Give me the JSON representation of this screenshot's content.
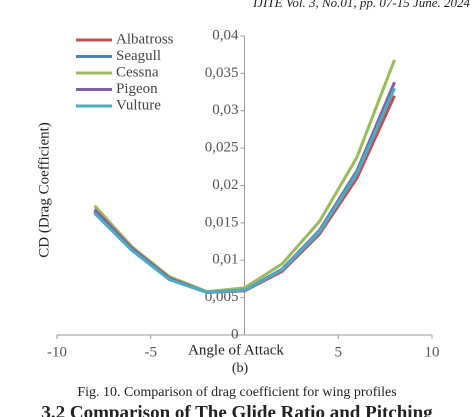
{
  "header": "IJITE Vol. 3, No.01, pp. 07-15  June. 2024",
  "chart_data": {
    "type": "line",
    "x_label": "Angle of Attack",
    "y_label": "CD (Drag Coefficient)",
    "x": [
      -8,
      -6,
      -4,
      -2,
      0,
      2,
      4,
      6,
      8
    ],
    "series": [
      {
        "name": "Albatross",
        "color": "#c0504d",
        "values": [
          0.0165,
          0.0115,
          0.0075,
          0.0057,
          0.0059,
          0.0085,
          0.0135,
          0.021,
          0.032
        ]
      },
      {
        "name": "Seagull",
        "color": "#4f81bd",
        "values": [
          0.0165,
          0.0114,
          0.0075,
          0.0057,
          0.006,
          0.0088,
          0.014,
          0.022,
          0.0338
        ]
      },
      {
        "name": "Cessna",
        "color": "#9bbb59",
        "values": [
          0.0173,
          0.0118,
          0.0078,
          0.0058,
          0.0063,
          0.0095,
          0.0152,
          0.0238,
          0.0368
        ]
      },
      {
        "name": "Pigeon",
        "color": "#8064a2",
        "values": [
          0.0168,
          0.0116,
          0.0076,
          0.0057,
          0.006,
          0.0087,
          0.0139,
          0.0218,
          0.0338
        ]
      },
      {
        "name": "Vulture",
        "color": "#4bacc6",
        "values": [
          0.0163,
          0.0113,
          0.0074,
          0.0057,
          0.006,
          0.0087,
          0.0138,
          0.0216,
          0.033
        ]
      }
    ],
    "xlim": [
      -10,
      10
    ],
    "xticks": [
      -10,
      -5,
      5,
      10
    ],
    "ylim": [
      0,
      0.04
    ],
    "yticks": [
      0,
      {
        "value": 0.005,
        "label": "0,005"
      },
      {
        "value": 0.01,
        "label": "0,01"
      },
      {
        "value": 0.015,
        "label": "0,015"
      },
      {
        "value": 0.02,
        "label": "0,02"
      },
      {
        "value": 0.025,
        "label": "0,025"
      },
      {
        "value": 0.03,
        "label": "0,03"
      },
      {
        "value": 0.035,
        "label": "0,035"
      },
      {
        "value": 0.04,
        "label": "0,04"
      }
    ],
    "legend": "upper-left"
  },
  "subcaption": "(b)",
  "caption": "Fig. 10. Comparison of drag coefficient for wing profiles",
  "heading": "3.2 Comparison of The Glide Ratio and Pitching"
}
